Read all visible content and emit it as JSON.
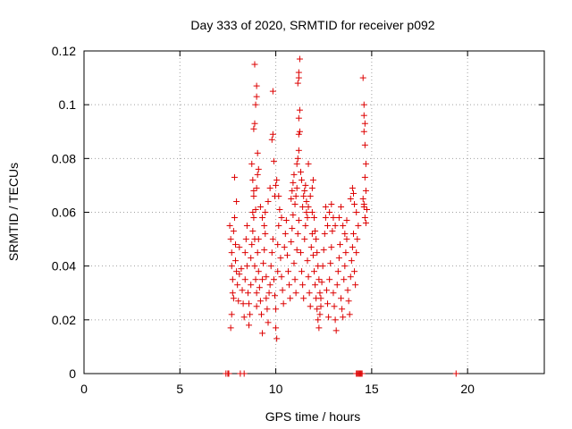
{
  "chart_data": {
    "type": "scatter",
    "title": "Day 333 of 2020, SRMTID for receiver p092",
    "xlabel": "GPS time / hours",
    "ylabel": "SRMTID / TECUs",
    "xlim": [
      0,
      24
    ],
    "ylim": [
      0,
      0.12
    ],
    "x_ticks": [
      0,
      5,
      10,
      15,
      20
    ],
    "x_tick_labels": [
      "0",
      "5",
      "10",
      "15",
      "20"
    ],
    "y_ticks": [
      0,
      0.02,
      0.04,
      0.06,
      0.08,
      0.1,
      0.12
    ],
    "y_tick_labels": [
      "0",
      "0.02",
      "0.04",
      "0.06",
      "0.08",
      "0.1",
      "0.12"
    ],
    "grid": true,
    "marker": "+",
    "marker_color": "#dd0000",
    "series": [
      {
        "name": "SRMTID",
        "points": [
          [
            7.6,
            0.055
          ],
          [
            7.65,
            0.05
          ],
          [
            7.7,
            0.045
          ],
          [
            7.7,
            0.04
          ],
          [
            7.75,
            0.035
          ],
          [
            7.75,
            0.03
          ],
          [
            7.8,
            0.028
          ],
          [
            7.8,
            0.053
          ],
          [
            7.85,
            0.058
          ],
          [
            7.9,
            0.048
          ],
          [
            7.9,
            0.042
          ],
          [
            7.95,
            0.038
          ],
          [
            7.95,
            0.064
          ],
          [
            7.85,
            0.073
          ],
          [
            7.65,
            0.017
          ],
          [
            7.7,
            0.022
          ],
          [
            8.0,
            0.033
          ],
          [
            8.05,
            0.027
          ],
          [
            8.1,
            0.037
          ],
          [
            8.1,
            0.047
          ],
          [
            8.2,
            0.039
          ],
          [
            8.25,
            0.031
          ],
          [
            8.3,
            0.026
          ],
          [
            8.35,
            0.021
          ],
          [
            8.4,
            0.035
          ],
          [
            8.4,
            0.045
          ],
          [
            8.45,
            0.05
          ],
          [
            8.5,
            0.055
          ],
          [
            8.5,
            0.04
          ],
          [
            8.55,
            0.03
          ],
          [
            8.6,
            0.026
          ],
          [
            8.6,
            0.018
          ],
          [
            8.65,
            0.022
          ],
          [
            8.7,
            0.033
          ],
          [
            8.7,
            0.043
          ],
          [
            8.75,
            0.048
          ],
          [
            8.8,
            0.053
          ],
          [
            8.8,
            0.06
          ],
          [
            8.85,
            0.066
          ],
          [
            8.85,
            0.058
          ],
          [
            8.9,
            0.05
          ],
          [
            8.9,
            0.04
          ],
          [
            8.95,
            0.035
          ],
          [
            9.0,
            0.03
          ],
          [
            9.0,
            0.025
          ],
          [
            9.05,
            0.045
          ],
          [
            9.1,
            0.05
          ],
          [
            9.1,
            0.038
          ],
          [
            9.15,
            0.032
          ],
          [
            9.2,
            0.027
          ],
          [
            9.25,
            0.022
          ],
          [
            9.3,
            0.015
          ],
          [
            9.3,
            0.035
          ],
          [
            9.35,
            0.041
          ],
          [
            9.4,
            0.046
          ],
          [
            9.45,
            0.052
          ],
          [
            9.5,
            0.036
          ],
          [
            9.5,
            0.028
          ],
          [
            9.55,
            0.024
          ],
          [
            9.6,
            0.019
          ],
          [
            8.75,
            0.078
          ],
          [
            8.8,
            0.072
          ],
          [
            8.85,
            0.068
          ],
          [
            8.95,
            0.061
          ],
          [
            9.0,
            0.069
          ],
          [
            9.05,
            0.074
          ],
          [
            8.85,
            0.091
          ],
          [
            8.9,
            0.093
          ],
          [
            8.95,
            0.1
          ],
          [
            9.0,
            0.103
          ],
          [
            9.0,
            0.107
          ],
          [
            8.9,
            0.115
          ],
          [
            9.05,
            0.082
          ],
          [
            9.1,
            0.076
          ],
          [
            9.2,
            0.062
          ],
          [
            9.3,
            0.058
          ],
          [
            9.4,
            0.055
          ],
          [
            9.45,
            0.06
          ],
          [
            9.6,
            0.064
          ],
          [
            9.7,
            0.069
          ],
          [
            9.65,
            0.03
          ],
          [
            9.7,
            0.033
          ],
          [
            9.75,
            0.04
          ],
          [
            9.8,
            0.045
          ],
          [
            9.85,
            0.05
          ],
          [
            9.9,
            0.035
          ],
          [
            9.95,
            0.029
          ],
          [
            10.0,
            0.024
          ],
          [
            10.0,
            0.017
          ],
          [
            10.05,
            0.013
          ],
          [
            10.1,
            0.038
          ],
          [
            10.1,
            0.048
          ],
          [
            10.15,
            0.055
          ],
          [
            10.2,
            0.061
          ],
          [
            10.25,
            0.043
          ],
          [
            10.3,
            0.036
          ],
          [
            10.35,
            0.031
          ],
          [
            10.4,
            0.026
          ],
          [
            10.45,
            0.047
          ],
          [
            10.5,
            0.052
          ],
          [
            9.8,
            0.087
          ],
          [
            9.85,
            0.089
          ],
          [
            9.9,
            0.079
          ],
          [
            9.85,
            0.105
          ],
          [
            9.95,
            0.066
          ],
          [
            10.0,
            0.07
          ],
          [
            10.05,
            0.072
          ],
          [
            10.15,
            0.066
          ],
          [
            10.3,
            0.058
          ],
          [
            10.55,
            0.057
          ],
          [
            10.6,
            0.044
          ],
          [
            10.65,
            0.038
          ],
          [
            10.7,
            0.033
          ],
          [
            10.75,
            0.028
          ],
          [
            10.8,
            0.049
          ],
          [
            10.85,
            0.054
          ],
          [
            10.9,
            0.059
          ],
          [
            10.95,
            0.041
          ],
          [
            11.0,
            0.035
          ],
          [
            11.05,
            0.03
          ],
          [
            10.8,
            0.065
          ],
          [
            10.85,
            0.068
          ],
          [
            10.9,
            0.071
          ],
          [
            10.95,
            0.074
          ],
          [
            11.0,
            0.063
          ],
          [
            11.05,
            0.066
          ],
          [
            11.1,
            0.069
          ],
          [
            11.1,
            0.078
          ],
          [
            11.15,
            0.08
          ],
          [
            11.2,
            0.083
          ],
          [
            11.2,
            0.089
          ],
          [
            11.25,
            0.09
          ],
          [
            11.2,
            0.095
          ],
          [
            11.25,
            0.098
          ],
          [
            11.15,
            0.108
          ],
          [
            11.2,
            0.11
          ],
          [
            11.2,
            0.112
          ],
          [
            11.25,
            0.117
          ],
          [
            11.3,
            0.075
          ],
          [
            11.35,
            0.072
          ],
          [
            11.1,
            0.046
          ],
          [
            11.15,
            0.052
          ],
          [
            11.2,
            0.057
          ],
          [
            11.3,
            0.045
          ],
          [
            11.35,
            0.038
          ],
          [
            11.4,
            0.033
          ],
          [
            11.45,
            0.028
          ],
          [
            11.5,
            0.05
          ],
          [
            11.55,
            0.055
          ],
          [
            11.6,
            0.06
          ],
          [
            11.65,
            0.042
          ],
          [
            11.7,
            0.036
          ],
          [
            11.75,
            0.03
          ],
          [
            11.8,
            0.025
          ],
          [
            11.85,
            0.047
          ],
          [
            11.9,
            0.052
          ],
          [
            11.95,
            0.044
          ],
          [
            12.0,
            0.038
          ],
          [
            12.05,
            0.033
          ],
          [
            12.1,
            0.028
          ],
          [
            11.4,
            0.062
          ],
          [
            11.45,
            0.066
          ],
          [
            11.5,
            0.068
          ],
          [
            11.55,
            0.07
          ],
          [
            11.6,
            0.064
          ],
          [
            11.65,
            0.058
          ],
          [
            11.7,
            0.062
          ],
          [
            11.8,
            0.066
          ],
          [
            11.9,
            0.069
          ],
          [
            11.95,
            0.072
          ],
          [
            11.7,
            0.078
          ],
          [
            11.9,
            0.06
          ],
          [
            12.0,
            0.058
          ],
          [
            12.05,
            0.053
          ],
          [
            12.1,
            0.05
          ],
          [
            12.15,
            0.045
          ],
          [
            12.2,
            0.04
          ],
          [
            12.25,
            0.035
          ],
          [
            12.3,
            0.03
          ],
          [
            12.35,
            0.025
          ],
          [
            12.15,
            0.024
          ],
          [
            12.2,
            0.02
          ],
          [
            12.25,
            0.017
          ],
          [
            12.3,
            0.022
          ],
          [
            12.35,
            0.028
          ],
          [
            12.4,
            0.034
          ],
          [
            12.45,
            0.04
          ],
          [
            12.5,
            0.046
          ],
          [
            12.55,
            0.052
          ],
          [
            12.6,
            0.058
          ],
          [
            12.65,
            0.031
          ],
          [
            12.7,
            0.026
          ],
          [
            12.75,
            0.021
          ],
          [
            12.8,
            0.035
          ],
          [
            12.85,
            0.041
          ],
          [
            12.9,
            0.047
          ],
          [
            12.95,
            0.053
          ],
          [
            13.0,
            0.03
          ],
          [
            13.05,
            0.025
          ],
          [
            13.1,
            0.02
          ],
          [
            12.6,
            0.062
          ],
          [
            12.7,
            0.055
          ],
          [
            12.8,
            0.06
          ],
          [
            12.9,
            0.063
          ],
          [
            13.0,
            0.058
          ],
          [
            13.1,
            0.055
          ],
          [
            13.15,
            0.016
          ],
          [
            13.2,
            0.033
          ],
          [
            13.25,
            0.038
          ],
          [
            13.3,
            0.043
          ],
          [
            13.35,
            0.048
          ],
          [
            13.4,
            0.028
          ],
          [
            13.45,
            0.024
          ],
          [
            13.5,
            0.021
          ],
          [
            13.55,
            0.035
          ],
          [
            13.6,
            0.04
          ],
          [
            13.65,
            0.045
          ],
          [
            13.7,
            0.05
          ],
          [
            13.75,
            0.031
          ],
          [
            13.8,
            0.027
          ],
          [
            13.3,
            0.058
          ],
          [
            13.4,
            0.062
          ],
          [
            13.5,
            0.055
          ],
          [
            13.6,
            0.052
          ],
          [
            13.7,
            0.057
          ],
          [
            13.85,
            0.022
          ],
          [
            13.9,
            0.036
          ],
          [
            13.95,
            0.042
          ],
          [
            14.0,
            0.047
          ],
          [
            14.05,
            0.052
          ],
          [
            14.1,
            0.038
          ],
          [
            14.15,
            0.033
          ],
          [
            14.2,
            0.045
          ],
          [
            14.25,
            0.05
          ],
          [
            14.3,
            0.055
          ],
          [
            13.9,
            0.065
          ],
          [
            14.0,
            0.069
          ],
          [
            14.05,
            0.067
          ],
          [
            14.1,
            0.063
          ],
          [
            14.2,
            0.06
          ],
          [
            14.55,
            0.11
          ],
          [
            14.6,
            0.1
          ],
          [
            14.6,
            0.096
          ],
          [
            14.65,
            0.093
          ],
          [
            14.6,
            0.09
          ],
          [
            14.65,
            0.085
          ],
          [
            14.7,
            0.078
          ],
          [
            14.65,
            0.073
          ],
          [
            14.7,
            0.068
          ],
          [
            14.6,
            0.062
          ],
          [
            14.65,
            0.058
          ],
          [
            14.7,
            0.056
          ],
          [
            14.75,
            0.061
          ],
          [
            14.6,
            0.063
          ],
          [
            14.55,
            0.065
          ]
        ],
        "zero_points": [
          7.4,
          7.5,
          7.55,
          8.15,
          8.35,
          14.2,
          14.25,
          14.3,
          14.35,
          14.4,
          14.45,
          14.5,
          19.4
        ]
      }
    ]
  }
}
